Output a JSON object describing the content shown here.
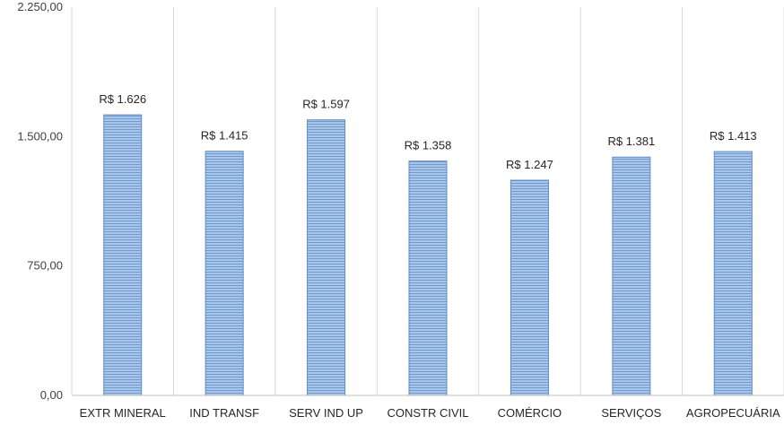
{
  "chart_data": {
    "type": "bar",
    "categories": [
      "EXTR MINERAL",
      "IND TRANSF",
      "SERV IND UP",
      "CONSTR CIVIL",
      "COMÉRCIO",
      "SERVIÇOS",
      "AGROPECUÁRIA"
    ],
    "values": [
      1626,
      1415,
      1597,
      1358,
      1247,
      1381,
      1413
    ],
    "data_labels": [
      "R$ 1.626",
      "R$ 1.415",
      "R$ 1.597",
      "R$ 1.358",
      "R$ 1.247",
      "R$ 1.381",
      "R$ 1.413"
    ],
    "y_ticks": [
      0,
      750,
      1500,
      2250
    ],
    "y_tick_labels": [
      "0,00",
      "750,00",
      "1.500,00",
      "2.250,00"
    ],
    "ylim": [
      0,
      2250
    ],
    "title": "",
    "xlabel": "",
    "ylabel": "",
    "grid": "vertical category separators",
    "legend": "none",
    "colors": {
      "bar_fill": "#a9c6e8",
      "bar_stripe": "#6f9bd1",
      "bar_edge": "#5b8cc6",
      "separator": "#d9d9d9",
      "axis": "#bfbfbf"
    }
  }
}
